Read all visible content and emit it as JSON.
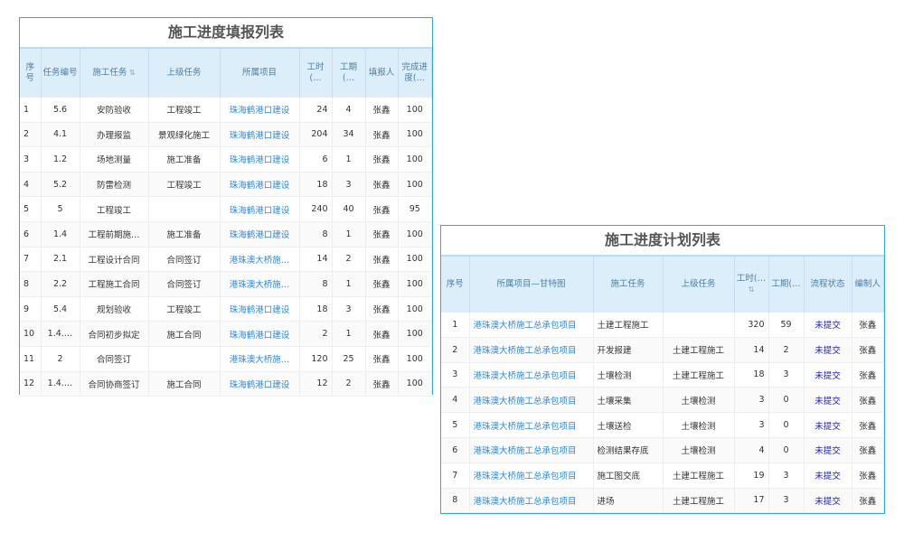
{
  "report_table": {
    "title": "施工进度填报列表",
    "columns": [
      "序号",
      "任务编号",
      "施工任务",
      "上级任务",
      "所属项目",
      "工时(…",
      "工期(…",
      "填报人",
      "完成进度(…"
    ],
    "rows": [
      [
        "1",
        "5.6",
        "安防验收",
        "工程竣工",
        "珠海鹤港口建设",
        "24",
        "4",
        "张鑫",
        "100"
      ],
      [
        "2",
        "4.1",
        "办理报监",
        "景观绿化施工",
        "珠海鹤港口建设",
        "204",
        "34",
        "张鑫",
        "100"
      ],
      [
        "3",
        "1.2",
        "场地测量",
        "施工准备",
        "珠海鹤港口建设",
        "6",
        "1",
        "张鑫",
        "100"
      ],
      [
        "4",
        "5.2",
        "防雷检测",
        "工程竣工",
        "珠海鹤港口建设",
        "18",
        "3",
        "张鑫",
        "100"
      ],
      [
        "5",
        "5",
        "工程竣工",
        "",
        "珠海鹤港口建设",
        "240",
        "40",
        "张鑫",
        "95"
      ],
      [
        "6",
        "1.4",
        "工程前期施…",
        "施工准备",
        "珠海鹤港口建设",
        "8",
        "1",
        "张鑫",
        "100"
      ],
      [
        "7",
        "2.1",
        "工程设计合同",
        "合同签订",
        "港珠澳大桥施…",
        "14",
        "2",
        "张鑫",
        "100"
      ],
      [
        "8",
        "2.2",
        "工程施工合同",
        "合同签订",
        "港珠澳大桥施…",
        "8",
        "1",
        "张鑫",
        "100"
      ],
      [
        "9",
        "5.4",
        "规划验收",
        "工程竣工",
        "珠海鹤港口建设",
        "18",
        "3",
        "张鑫",
        "100"
      ],
      [
        "10",
        "1.4.…",
        "合同初步拟定",
        "施工合同",
        "珠海鹤港口建设",
        "2",
        "1",
        "张鑫",
        "100"
      ],
      [
        "11",
        "2",
        "合同签订",
        "",
        "港珠澳大桥施…",
        "120",
        "25",
        "张鑫",
        "100"
      ],
      [
        "12",
        "1.4.…",
        "合同协商签订",
        "施工合同",
        "珠海鹤港口建设",
        "12",
        "2",
        "张鑫",
        "100"
      ]
    ]
  },
  "plan_table": {
    "title": "施工进度计划列表",
    "columns": [
      "序号",
      "所属项目—甘特图",
      "施工任务",
      "上级任务",
      "工时(…",
      "工期(…",
      "流程状态",
      "编制人"
    ],
    "rows": [
      [
        "1",
        "港珠澳大桥施工总承包项目",
        "土建工程施工",
        "",
        "320",
        "59",
        "未提交",
        "张鑫"
      ],
      [
        "2",
        "港珠澳大桥施工总承包项目",
        "开发报建",
        "土建工程施工",
        "14",
        "2",
        "未提交",
        "张鑫"
      ],
      [
        "3",
        "港珠澳大桥施工总承包项目",
        "土壤检测",
        "土建工程施工",
        "18",
        "3",
        "未提交",
        "张鑫"
      ],
      [
        "4",
        "港珠澳大桥施工总承包项目",
        "土壤采集",
        "土壤检测",
        "3",
        "0",
        "未提交",
        "张鑫"
      ],
      [
        "5",
        "港珠澳大桥施工总承包项目",
        "土壤送检",
        "土壤检测",
        "3",
        "0",
        "未提交",
        "张鑫"
      ],
      [
        "6",
        "港珠澳大桥施工总承包项目",
        "检测结果存底",
        "土壤检测",
        "4",
        "0",
        "未提交",
        "张鑫"
      ],
      [
        "7",
        "港珠澳大桥施工总承包项目",
        "施工图交底",
        "土建工程施工",
        "19",
        "3",
        "未提交",
        "张鑫"
      ],
      [
        "8",
        "港珠澳大桥施工总承包项目",
        "进场",
        "土建工程施工",
        "17",
        "3",
        "未提交",
        "张鑫"
      ]
    ]
  },
  "colors": {
    "border": "#29a8ec",
    "header_bg": "#ddeefb",
    "link": "#2a8ae6",
    "status": "#2222cc"
  }
}
